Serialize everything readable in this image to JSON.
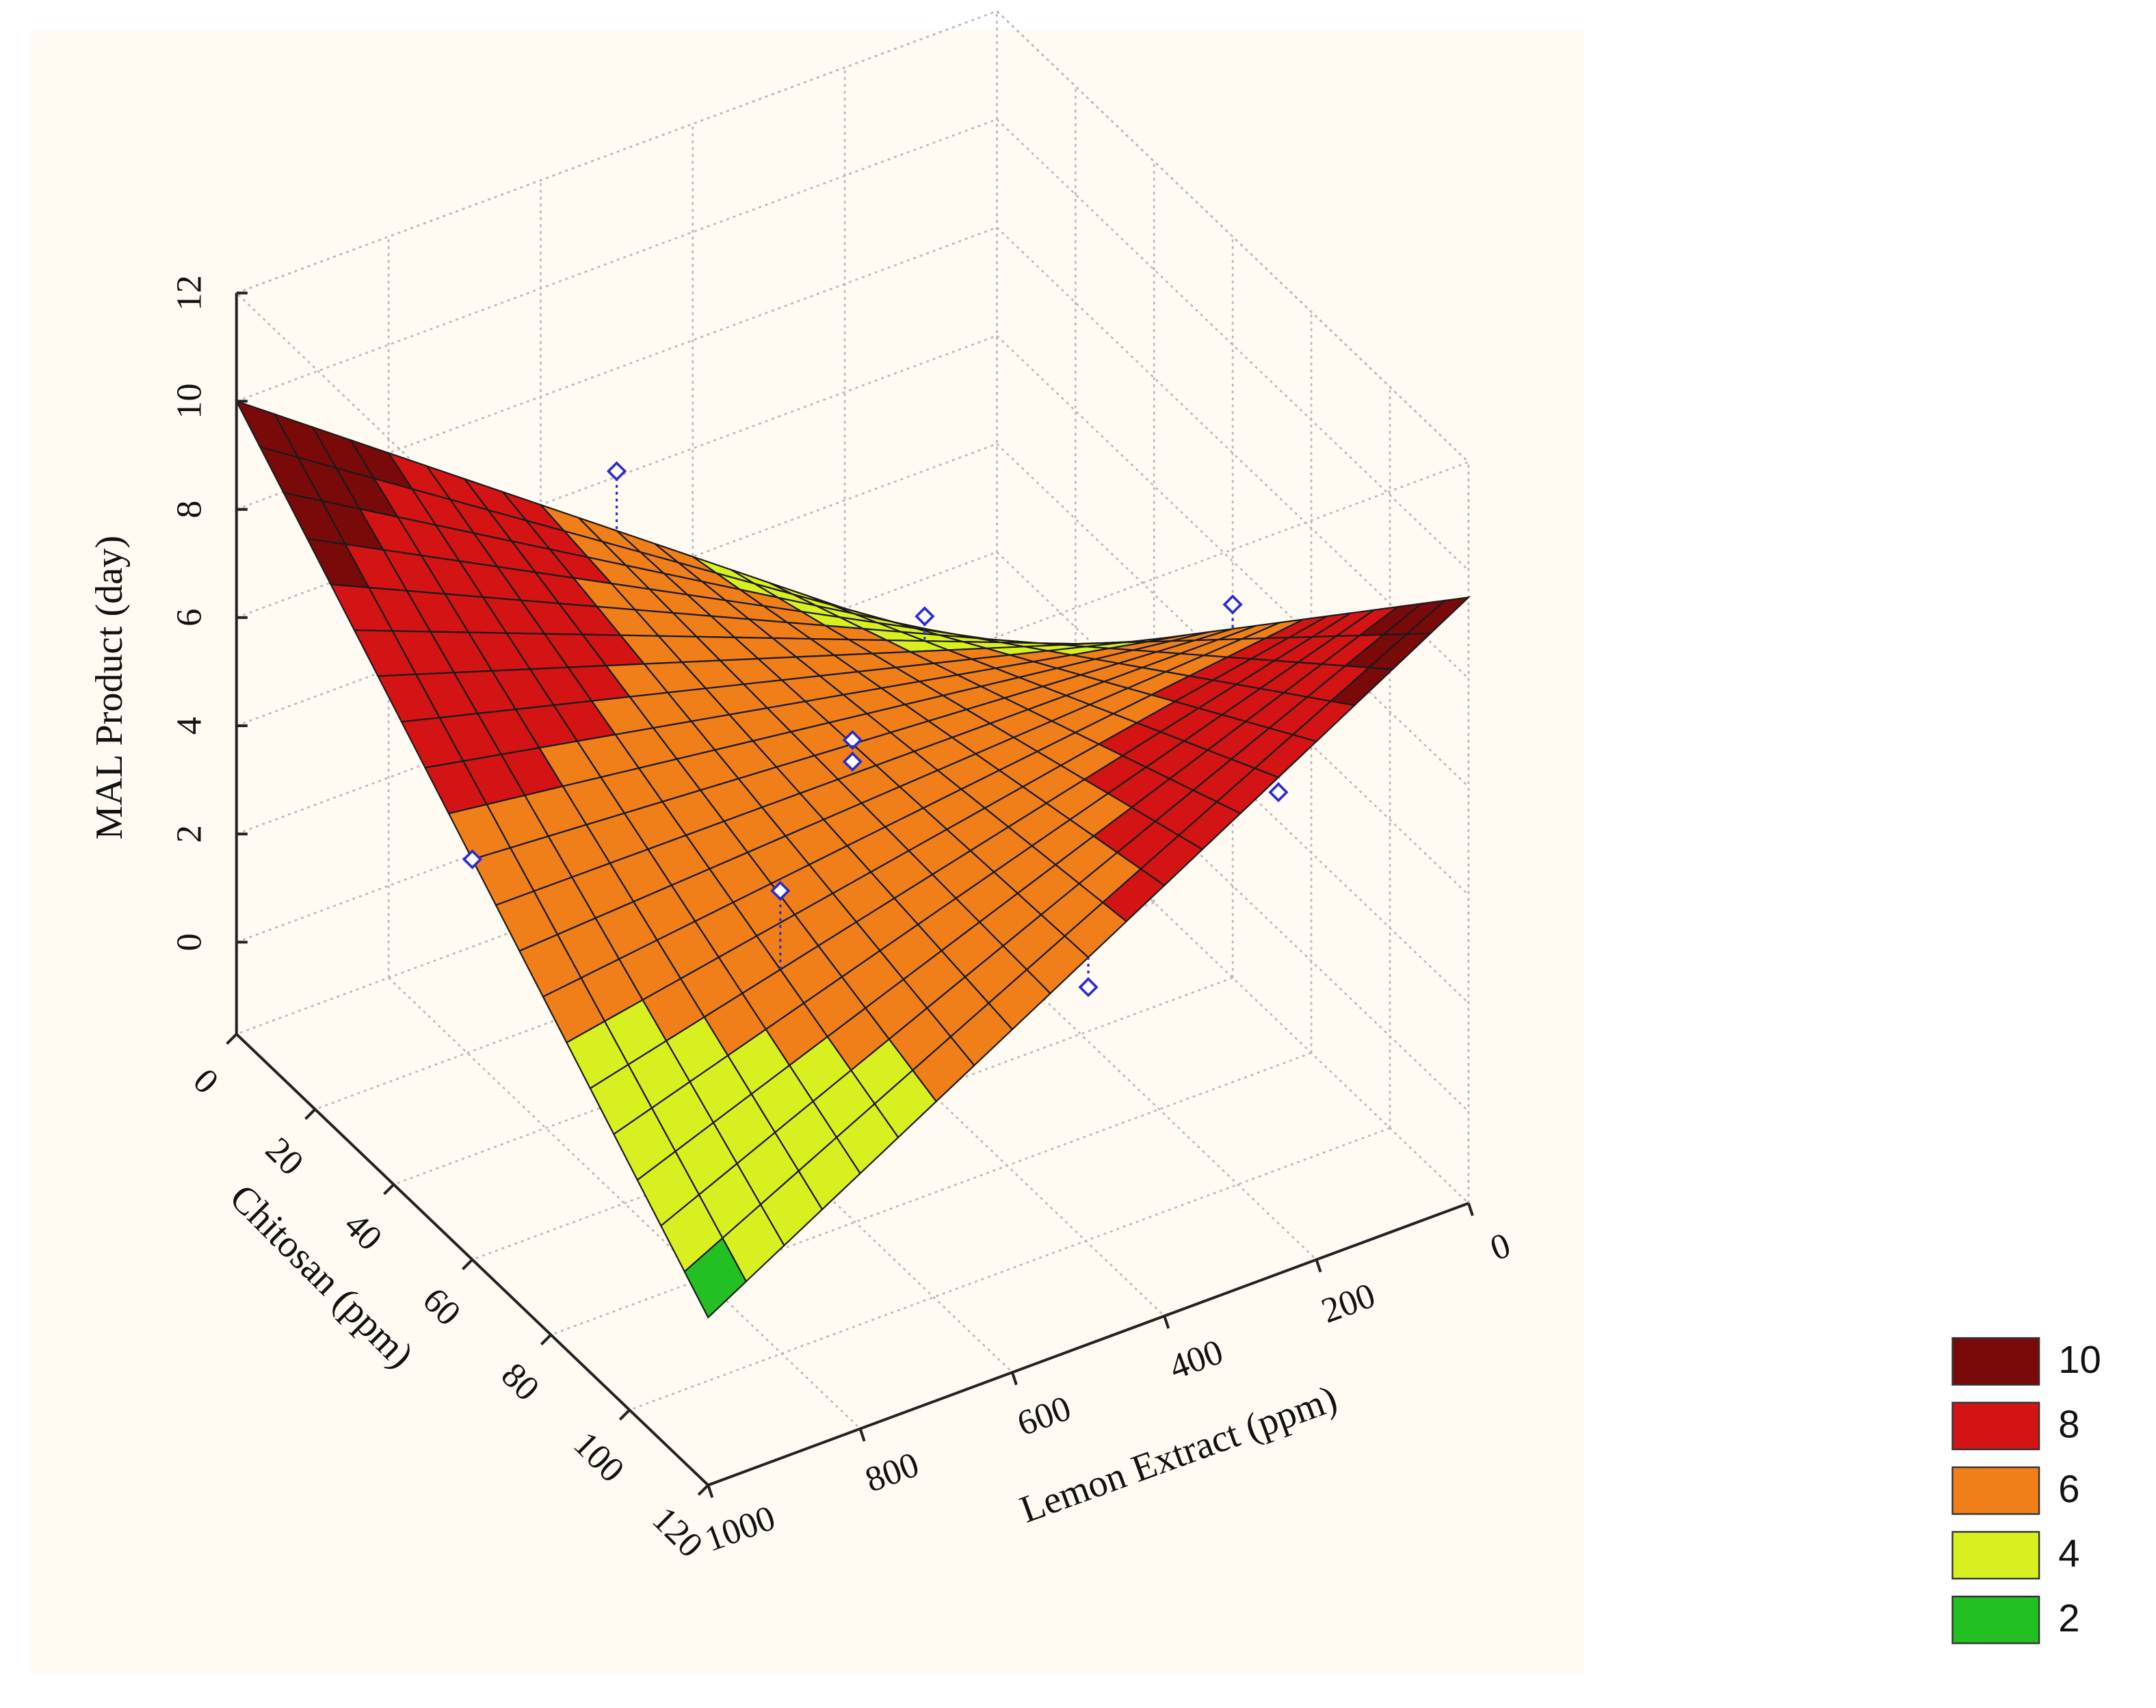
{
  "chart_data": {
    "type": "surface3d",
    "x_label": "Chitosan (ppm)",
    "y_label": "Lemon Extract (ppm)",
    "z_label": "MAL Product (day)",
    "xlim": [
      0,
      120
    ],
    "xticks": [
      0,
      20,
      40,
      60,
      80,
      100,
      120
    ],
    "ylim": [
      0,
      1000
    ],
    "yticks": [
      0,
      200,
      400,
      600,
      800,
      1000
    ],
    "zlim": [
      -1.7,
      12
    ],
    "zticks": [
      0,
      2,
      4,
      6,
      8,
      10,
      12
    ],
    "surface": {
      "x": [
        0,
        120
      ],
      "y": [
        0,
        1000
      ],
      "z": [
        [
          0,
          9.5
        ],
        [
          10,
          1.4
        ]
      ]
    },
    "points": {
      "x": [
        0,
        60,
        60,
        120,
        60,
        60,
        30,
        90,
        120
      ],
      "y": [
        500,
        500,
        500,
        500,
        0,
        1000,
        250,
        750,
        250
      ],
      "z": [
        6.1,
        5.3,
        4.9,
        4.9,
        5.2,
        5.7,
        4.2,
        5.9,
        7.2
      ],
      "color": "#2a2ad0"
    },
    "levels": [
      10,
      8,
      6,
      4,
      2
    ],
    "level_colors": [
      "#7a0a0a",
      "#d41414",
      "#f07f1a",
      "#d8f020",
      "#22c022"
    ],
    "grid": true
  }
}
